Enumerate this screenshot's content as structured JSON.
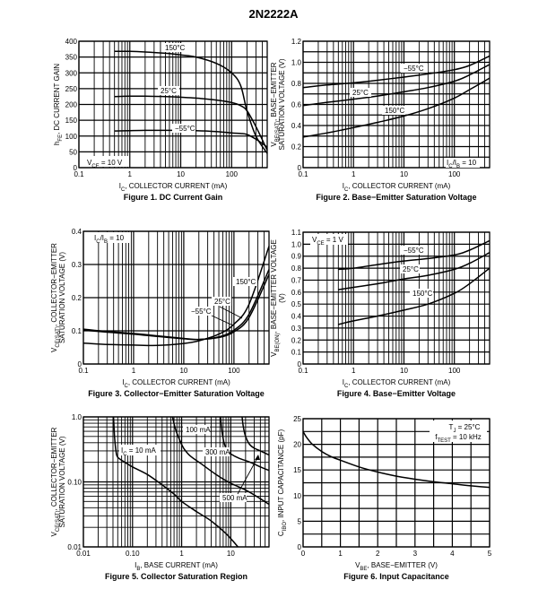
{
  "title": "2N2222A",
  "chart_data": [
    {
      "id": "fig1",
      "type": "line",
      "caption": "Figure 1. DC Current Gain",
      "xlabel": "I_C, COLLECTOR CURRENT (mA)",
      "xlabel_main": "I",
      "xlabel_sub": "C",
      "xlabel_rest": ", COLLECTOR CURRENT (mA)",
      "ylabel_main": "h",
      "ylabel_sub": "FE",
      "ylabel_rest": ", DC CURRENT GAIN",
      "xscale": "log",
      "xlim": [
        0.1,
        500
      ],
      "yscale": "linear",
      "ylim": [
        0,
        400
      ],
      "xticks": [
        0.1,
        1,
        10,
        100
      ],
      "xtick_labels": [
        "0.1",
        "1",
        "10",
        "100"
      ],
      "yticks": [
        0,
        50,
        100,
        150,
        200,
        250,
        300,
        350,
        400
      ],
      "ytick_labels": [
        "0",
        "50",
        "100",
        "150",
        "200",
        "250",
        "300",
        "350",
        "400"
      ],
      "ygrid_step": 50,
      "annotation": {
        "main": "V",
        "sub": "CE",
        "rest": " = 10 V"
      },
      "series": [
        {
          "name": "150°C",
          "x": [
            0.5,
            1,
            2,
            5,
            10,
            20,
            50,
            100,
            150,
            200,
            300,
            500
          ],
          "y": [
            368,
            368,
            366,
            362,
            357,
            350,
            330,
            300,
            260,
            180,
            100,
            45
          ]
        },
        {
          "name": "25°C",
          "x": [
            0.5,
            1,
            2,
            5,
            10,
            20,
            50,
            100,
            150,
            200,
            300,
            500
          ],
          "y": [
            225,
            226,
            226,
            225,
            223,
            220,
            214,
            206,
            196,
            180,
            130,
            55
          ]
        },
        {
          "name": "-55°C",
          "x": [
            0.5,
            1,
            2,
            5,
            10,
            20,
            50,
            100,
            150,
            200,
            300,
            500
          ],
          "y": [
            116,
            117,
            118,
            118,
            118,
            117,
            114,
            110,
            108,
            105,
            90,
            65
          ]
        }
      ],
      "series_labels": [
        "150°C",
        "25°C",
        "−55°C"
      ]
    },
    {
      "id": "fig2",
      "type": "line",
      "caption": "Figure 2. Base−Emitter Saturation Voltage",
      "xlabel_main": "I",
      "xlabel_sub": "C",
      "xlabel_rest": ", COLLECTOR CURRENT (mA)",
      "ylabel_line1_main": "V",
      "ylabel_line1_sub": "BE(SAT)",
      "ylabel_line1_rest": ", BASE−EMITTER",
      "ylabel_line2": "SATURATION VOLTAGE (V)",
      "xscale": "log",
      "xlim": [
        0.1,
        500
      ],
      "yscale": "linear",
      "ylim": [
        0,
        1.2
      ],
      "xticks": [
        0.1,
        1,
        10,
        100
      ],
      "xtick_labels": [
        "0.1",
        "1",
        "10",
        "100"
      ],
      "yticks": [
        0,
        0.2,
        0.4,
        0.6,
        0.8,
        1.0,
        1.2
      ],
      "ytick_labels": [
        "0",
        "0.2",
        "0.4",
        "0.6",
        "0.8",
        "1.0",
        "1.2"
      ],
      "ygrid_step": 0.1,
      "annotation": {
        "main": "I",
        "sub1": "C",
        "mid": "/I",
        "sub2": "B",
        "rest": " = 10"
      },
      "series": [
        {
          "name": "-55°C",
          "x": [
            0.1,
            0.3,
            1,
            3,
            10,
            30,
            100,
            200,
            500
          ],
          "y": [
            0.76,
            0.785,
            0.805,
            0.83,
            0.86,
            0.89,
            0.93,
            0.97,
            1.06
          ]
        },
        {
          "name": "25°C",
          "x": [
            0.1,
            0.3,
            1,
            3,
            10,
            30,
            100,
            200,
            500
          ],
          "y": [
            0.59,
            0.62,
            0.65,
            0.68,
            0.72,
            0.76,
            0.82,
            0.88,
            0.98
          ]
        },
        {
          "name": "150°C",
          "x": [
            0.1,
            0.3,
            1,
            3,
            10,
            30,
            100,
            200,
            500
          ],
          "y": [
            0.29,
            0.33,
            0.38,
            0.43,
            0.49,
            0.56,
            0.66,
            0.74,
            0.85
          ]
        }
      ],
      "series_labels": [
        "−55°C",
        "25°C",
        "150°C"
      ]
    },
    {
      "id": "fig3",
      "type": "line",
      "caption": "Figure 3. Collector−Emitter Saturation Voltage",
      "xlabel_main": "I",
      "xlabel_sub": "C",
      "xlabel_rest": ", COLLECTOR CURRENT (mA)",
      "ylabel_line1_main": "V",
      "ylabel_line1_sub": "CE(SAT)",
      "ylabel_line1_rest": ", COLLECTOR−EMITTER",
      "ylabel_line2": "SATURATION VOLTAGE (V)",
      "xscale": "log",
      "xlim": [
        0.1,
        500
      ],
      "yscale": "linear",
      "ylim": [
        0,
        0.4
      ],
      "xticks": [
        0.1,
        1,
        10,
        100
      ],
      "xtick_labels": [
        "0.1",
        "1",
        "10",
        "100"
      ],
      "yticks": [
        0,
        0.1,
        0.2,
        0.3,
        0.4
      ],
      "ytick_labels": [
        "0",
        "0.1",
        "0.2",
        "0.3",
        "0.4"
      ],
      "ygrid_step": 0.1,
      "annotation": {
        "main": "I",
        "sub1": "C",
        "mid": "/I",
        "sub2": "B",
        "rest": " = 10"
      },
      "series": [
        {
          "name": "150°C",
          "x": [
            0.1,
            0.3,
            1,
            3,
            10,
            20,
            50,
            100,
            200,
            500
          ],
          "y": [
            0.063,
            0.059,
            0.057,
            0.056,
            0.062,
            0.07,
            0.09,
            0.12,
            0.18,
            0.355
          ]
        },
        {
          "name": "25°C",
          "x": [
            0.1,
            0.3,
            1,
            3,
            10,
            20,
            50,
            100,
            200,
            500
          ],
          "y": [
            0.102,
            0.096,
            0.09,
            0.083,
            0.076,
            0.074,
            0.082,
            0.102,
            0.15,
            0.285
          ]
        },
        {
          "name": "-55°C",
          "x": [
            0.1,
            0.3,
            1,
            3,
            10,
            20,
            50,
            100,
            200,
            500
          ],
          "y": [
            0.105,
            0.098,
            0.092,
            0.085,
            0.077,
            0.074,
            0.08,
            0.097,
            0.14,
            0.27
          ]
        }
      ],
      "series_labels": [
        "150°C",
        "25°C",
        "−55°C"
      ]
    },
    {
      "id": "fig4",
      "type": "line",
      "caption": "Figure 4. Base−Emitter Voltage",
      "xlabel_main": "I",
      "xlabel_sub": "C",
      "xlabel_rest": ", COLLECTOR CURRENT (mA)",
      "ylabel_line1_main": "V",
      "ylabel_line1_sub": "BE(ON)",
      "ylabel_line1_rest": ", BASE−EMITTER VOLTAGE",
      "ylabel_line2": "(V)",
      "xscale": "log",
      "xlim": [
        0.1,
        500
      ],
      "yscale": "linear",
      "ylim": [
        0,
        1.1
      ],
      "xticks": [
        0.1,
        1,
        10,
        100
      ],
      "xtick_labels": [
        "0.1",
        "1",
        "10",
        "100"
      ],
      "yticks": [
        0,
        0.1,
        0.2,
        0.3,
        0.4,
        0.5,
        0.6,
        0.7,
        0.8,
        0.9,
        1.0,
        1.1
      ],
      "ytick_labels": [
        "0",
        "0.1",
        "0.2",
        "0.3",
        "0.4",
        "0.5",
        "0.6",
        "0.7",
        "0.8",
        "0.9",
        "1.0",
        "1.1"
      ],
      "ygrid_step": 0.1,
      "annotation": {
        "main": "V",
        "sub": "CE",
        "rest": " = 1 V"
      },
      "series": [
        {
          "name": "-55°C",
          "x": [
            0.5,
            1,
            3,
            10,
            30,
            100,
            200,
            500
          ],
          "y": [
            0.79,
            0.8,
            0.83,
            0.86,
            0.88,
            0.91,
            0.95,
            1.03
          ]
        },
        {
          "name": "25°C",
          "x": [
            0.5,
            1,
            3,
            10,
            30,
            100,
            200,
            500
          ],
          "y": [
            0.62,
            0.64,
            0.67,
            0.71,
            0.74,
            0.79,
            0.84,
            0.93
          ]
        },
        {
          "name": "150°C",
          "x": [
            0.5,
            1,
            3,
            10,
            30,
            100,
            200,
            500
          ],
          "y": [
            0.33,
            0.36,
            0.4,
            0.45,
            0.5,
            0.59,
            0.67,
            0.8
          ]
        }
      ],
      "series_labels": [
        "−55°C",
        "25°C",
        "150°C"
      ]
    },
    {
      "id": "fig5",
      "type": "line",
      "caption": "Figure 5. Collector Saturation Region",
      "xlabel_main": "I",
      "xlabel_sub": "B",
      "xlabel_rest": ", BASE CURRENT (mA)",
      "ylabel_line1_main": "V",
      "ylabel_line1_sub": "CE(SAT)",
      "ylabel_line1_rest": ", COLLECTOR−EMITTER",
      "ylabel_line2": "SATURATION VOLTAGE (V)",
      "xscale": "log",
      "xlim": [
        0.01,
        60
      ],
      "yscale": "log",
      "ylim": [
        0.01,
        1.0
      ],
      "xticks": [
        0.01,
        0.1,
        1,
        10
      ],
      "xtick_labels": [
        "0.01",
        "0.10",
        "1",
        "10"
      ],
      "yticks": [
        0.01,
        0.1,
        1.0
      ],
      "ytick_labels": [
        "0.01",
        "0.10",
        "1.0"
      ],
      "series": [
        {
          "name": "I_C = 10 mA",
          "x": [
            0.041,
            0.043,
            0.046,
            0.05,
            0.07,
            0.1,
            0.2,
            0.4,
            0.7,
            1,
            2,
            4,
            8,
            14
          ],
          "y": [
            1.0,
            0.5,
            0.3,
            0.24,
            0.2,
            0.17,
            0.13,
            0.09,
            0.065,
            0.05,
            0.035,
            0.025,
            0.016,
            0.01
          ]
        },
        {
          "name": "100 mA",
          "x": [
            0.65,
            0.75,
            0.9,
            1.1,
            1.5,
            2.5,
            5,
            10,
            20,
            40,
            60
          ],
          "y": [
            1.0,
            0.65,
            0.45,
            0.33,
            0.25,
            0.19,
            0.13,
            0.095,
            0.075,
            0.055,
            0.045
          ]
        },
        {
          "name": "300 mA",
          "x": [
            6.2,
            6.6,
            7.2,
            8,
            10,
            15,
            25,
            40,
            60
          ],
          "y": [
            1.0,
            0.6,
            0.42,
            0.33,
            0.27,
            0.23,
            0.2,
            0.17,
            0.15
          ]
        },
        {
          "name": "500 mA",
          "x": [
            17,
            18,
            20,
            24,
            30,
            40,
            60
          ],
          "y": [
            1.0,
            0.7,
            0.5,
            0.38,
            0.33,
            0.3,
            0.26
          ]
        }
      ],
      "series_labels": [
        "= 10 mA",
        "100 mA",
        "300 mA",
        "500 mA"
      ],
      "ic_label": {
        "main": "I",
        "sub": "C"
      }
    },
    {
      "id": "fig6",
      "type": "line",
      "caption": "Figure 6. Input Capacitance",
      "xlabel_main": "V",
      "xlabel_sub": "BE",
      "xlabel_rest": ", BASE−EMITTER (V)",
      "ylabel_main": "C",
      "ylabel_sub": "IBO",
      "ylabel_rest": ", INPUT CAPACITANCE (pF)",
      "xscale": "linear",
      "xlim": [
        0,
        5
      ],
      "yscale": "linear",
      "ylim": [
        0,
        25
      ],
      "xticks": [
        0,
        1,
        2,
        3,
        4,
        5
      ],
      "xtick_labels": [
        "0",
        "1",
        "2",
        "3",
        "4",
        "5"
      ],
      "yticks": [
        0,
        5,
        10,
        15,
        20,
        25
      ],
      "ytick_labels": [
        "0",
        "5",
        "10",
        "15",
        "20",
        "25"
      ],
      "xgrid_step": 0.5,
      "ygrid_step": 2.5,
      "annotation_line1": {
        "main": "T",
        "sub": "J",
        "rest": " = 25°C"
      },
      "annotation_line2": {
        "main": "f",
        "sub": "TEST",
        "rest": " = 10 kHz"
      },
      "series": [
        {
          "name": "C_IBO",
          "x": [
            0,
            0.1,
            0.25,
            0.5,
            0.75,
            1,
            1.5,
            2,
            2.5,
            3,
            3.5,
            4,
            4.5,
            5
          ],
          "y": [
            22.5,
            21.3,
            20.0,
            18.6,
            17.6,
            16.9,
            15.6,
            14.6,
            13.8,
            13.2,
            12.7,
            12.3,
            11.9,
            11.6
          ]
        }
      ]
    }
  ]
}
